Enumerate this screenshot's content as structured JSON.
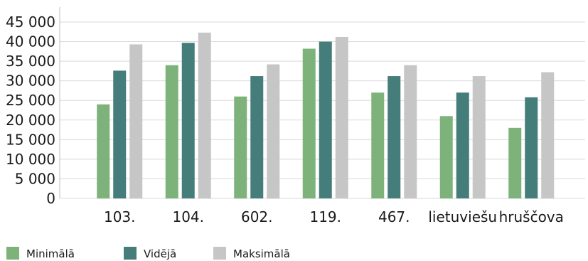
{
  "chart_data": {
    "type": "bar",
    "title": "",
    "xlabel": "",
    "ylabel": "",
    "categories": [
      "103.",
      "104.",
      "602.",
      "119.",
      "467.",
      "lietuviešu",
      "hruščova"
    ],
    "series": [
      {
        "name": "Minimālā",
        "color": "#7db37a",
        "values": [
          24000,
          34000,
          26000,
          38200,
          27000,
          21000,
          18000
        ]
      },
      {
        "name": "Vidējā",
        "color": "#447d7a",
        "values": [
          32600,
          39700,
          31200,
          40000,
          31200,
          27000,
          25800
        ]
      },
      {
        "name": "Maksimālā",
        "color": "#c6c6c6",
        "values": [
          39300,
          42300,
          34200,
          41200,
          34000,
          31200,
          32200
        ]
      }
    ],
    "ylim": [
      0,
      45000
    ],
    "yticks": [
      0,
      5000,
      10000,
      15000,
      20000,
      25000,
      30000,
      35000,
      40000,
      45000
    ],
    "ytick_labels": [
      "0",
      "5 000",
      "10 000",
      "15 000",
      "20 000",
      "25 000",
      "30 000",
      "35 000",
      "40 000",
      "45 000"
    ],
    "grid": true,
    "legend_position": "bottom-left"
  }
}
